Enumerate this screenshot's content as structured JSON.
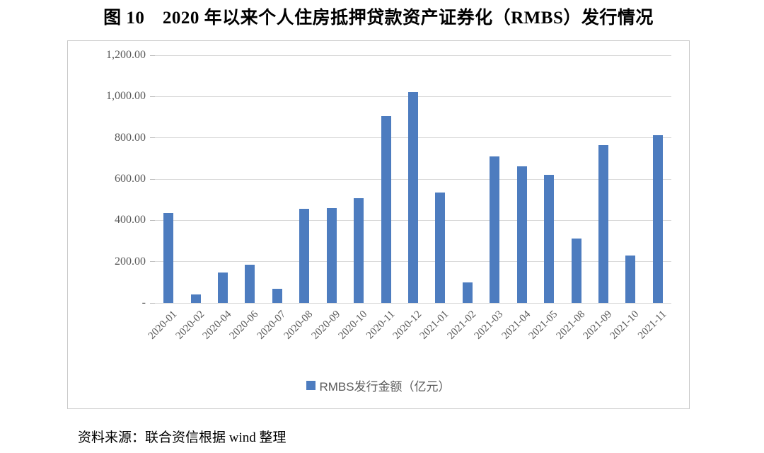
{
  "figure": {
    "title": "图 10　2020 年以来个人住房抵押贷款资产证券化（RMBS）发行情况",
    "source": "资料来源：联合资信根据 wind 整理"
  },
  "chart_data": {
    "type": "bar",
    "title": "",
    "xlabel": "",
    "ylabel": "",
    "legend": "RMBS发行金额（亿元）",
    "legend_position": "bottom",
    "categories": [
      "2020-01",
      "2020-02",
      "2020-04",
      "2020-06",
      "2020-07",
      "2020-08",
      "2020-09",
      "2020-10",
      "2020-11",
      "2020-12",
      "2021-01",
      "2021-02",
      "2021-03",
      "2021-04",
      "2021-05",
      "2021-08",
      "2021-09",
      "2021-10",
      "2021-11"
    ],
    "values": [
      435,
      40,
      148,
      186,
      67,
      457,
      461,
      507,
      905,
      1022,
      535,
      100,
      710,
      662,
      620,
      311,
      766,
      230,
      812
    ],
    "ylim": [
      0,
      1200
    ],
    "ytick_interval": 200,
    "ytick_labels": [
      "-",
      "200.00",
      "400.00",
      "600.00",
      "800.00",
      "1,000.00",
      "1,200.00"
    ],
    "grid": true,
    "bar_color": "#4d7cbf",
    "gridline_color": "#d9d9d9",
    "axis_text_color": "#595959"
  }
}
